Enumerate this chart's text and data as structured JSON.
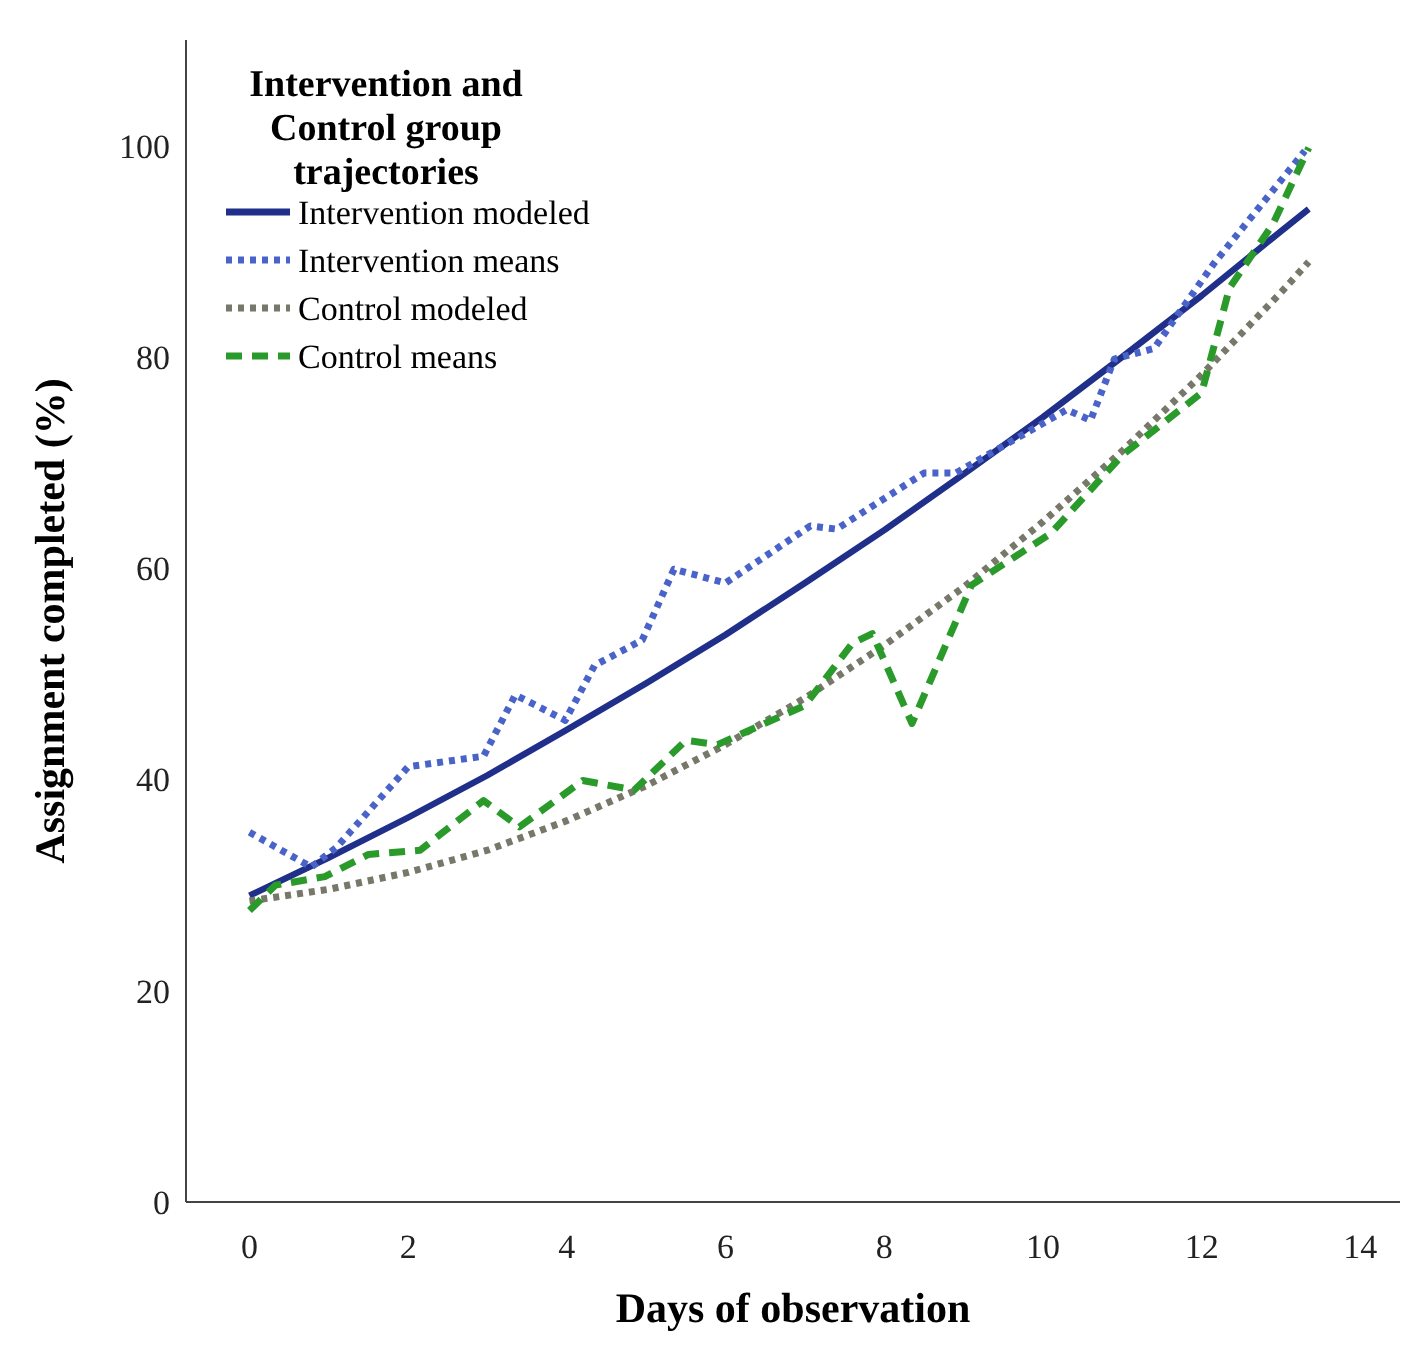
{
  "chart_data": {
    "type": "line",
    "xlabel": "Days of observation",
    "ylabel": "Assignment completed (%)",
    "legend_title": "Intervention and Control group trajectories",
    "legend": "top left",
    "grid": false,
    "xlim": [
      -0.8,
      14.5
    ],
    "ylim": [
      0,
      110
    ],
    "xticks": [
      0,
      2,
      4,
      6,
      8,
      10,
      12,
      14
    ],
    "yticks": [
      0,
      20,
      40,
      60,
      80,
      100
    ],
    "series": [
      {
        "name": "Intervention modeled",
        "color": "#1f2f8a",
        "line_style": "solid",
        "x": [
          0,
          1,
          2,
          3,
          4,
          5,
          6,
          7,
          8,
          9,
          10,
          11,
          12,
          13,
          13.35
        ],
        "values": [
          29,
          32.6,
          36.4,
          40.4,
          44.7,
          49.1,
          53.7,
          58.6,
          63.6,
          68.9,
          74.3,
          80.0,
          85.8,
          91.9,
          94.0
        ]
      },
      {
        "name": "Intervention means",
        "color": "#4a63c9",
        "line_style": "dotted",
        "x": [
          0,
          0.78,
          1.1,
          2.0,
          2.95,
          3.35,
          3.98,
          4.35,
          4.95,
          5.35,
          6.0,
          7.07,
          7.4,
          8.5,
          8.9,
          10.3,
          10.6,
          10.9,
          11.4,
          12.15,
          13.3
        ],
        "values": [
          35,
          31.7,
          33.6,
          41.2,
          42.2,
          48,
          45.6,
          50.8,
          53.2,
          59.9,
          58.6,
          64,
          63.7,
          69,
          69,
          75,
          74,
          79.8,
          80.8,
          88.8,
          99.5
        ]
      },
      {
        "name": "Control modeled",
        "color": "#77776a",
        "line_style": "dotted",
        "x": [
          0,
          1,
          2,
          3,
          4,
          5,
          6,
          7,
          8,
          9,
          10,
          11,
          12,
          13,
          13.35
        ],
        "values": [
          28.5,
          29.6,
          31.2,
          33.3,
          36.1,
          39.4,
          43.3,
          47.7,
          52.7,
          58.2,
          64.4,
          71.1,
          78.3,
          86.1,
          89.0
        ]
      },
      {
        "name": "Control means",
        "color": "#2a9a2a",
        "line_style": "dashed",
        "x": [
          0,
          0.33,
          0.95,
          1.5,
          2.15,
          2.95,
          3.4,
          4.2,
          4.85,
          5.5,
          5.9,
          7.0,
          7.6,
          7.85,
          8.35,
          9.1,
          10.1,
          11.0,
          12.0,
          12.35,
          12.9,
          13.35
        ],
        "values": [
          27.6,
          30,
          30.8,
          32.9,
          33.3,
          38,
          35.5,
          39.9,
          39,
          43.7,
          43.3,
          47,
          52.9,
          53.8,
          45.3,
          58.4,
          63.3,
          70.7,
          76.6,
          86.5,
          92.6,
          99.8
        ]
      }
    ]
  }
}
